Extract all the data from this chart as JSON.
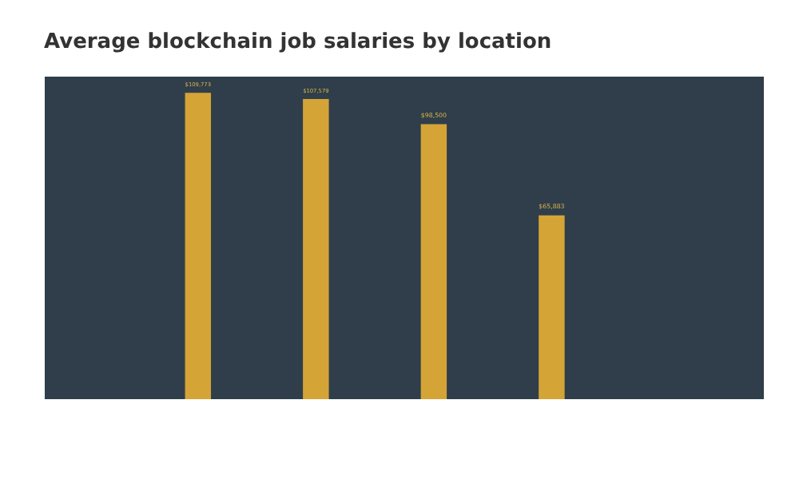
{
  "chart_data": {
    "type": "bar",
    "title": "Average blockchain job salaries by location",
    "categories": [
      null,
      null,
      null,
      null
    ],
    "values": [
      109773,
      107579,
      98500,
      65883
    ],
    "value_labels": [
      "$109,773",
      "$107,579",
      "$98,500",
      "$65,883"
    ],
    "color": "#d4a437"
  }
}
